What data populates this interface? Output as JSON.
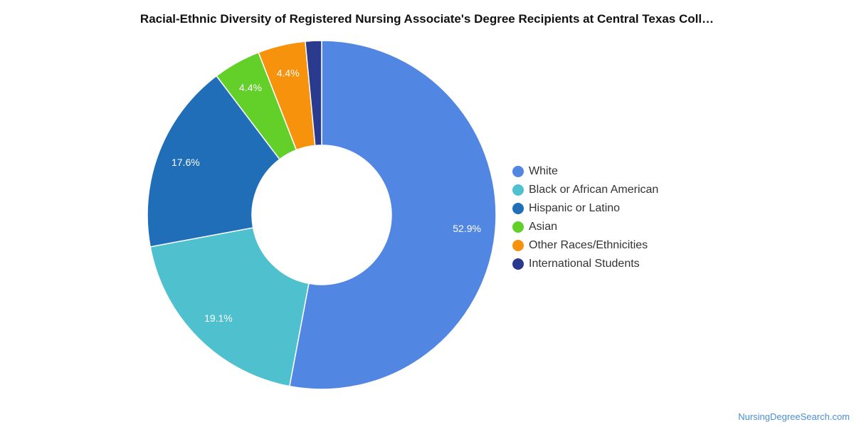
{
  "chart_data": {
    "type": "pie",
    "title": "Racial-Ethnic Diversity of Registered Nursing Associate's Degree Recipients at Central Texas Coll…",
    "donut": true,
    "legend_position": "right",
    "slices": [
      {
        "name": "White",
        "value": 52.9,
        "label": "52.9%",
        "color": "#5286e3"
      },
      {
        "name": "Black or African American",
        "value": 19.1,
        "label": "19.1%",
        "color": "#4fc1ce"
      },
      {
        "name": "Hispanic or Latino",
        "value": 17.6,
        "label": "17.6%",
        "color": "#1f6eb7"
      },
      {
        "name": "Asian",
        "value": 4.4,
        "label": "4.4%",
        "color": "#63cf29"
      },
      {
        "name": "Other Races/Ethnicities",
        "value": 4.4,
        "label": "4.4%",
        "color": "#f7920c"
      },
      {
        "name": "International Students",
        "value": 1.5,
        "label": "",
        "color": "#2a3a8c"
      }
    ]
  },
  "footer": {
    "source": "NursingDegreeSearch.com"
  }
}
